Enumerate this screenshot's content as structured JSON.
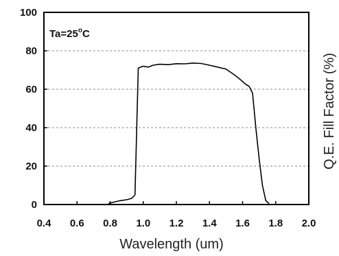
{
  "chart_data": {
    "type": "line",
    "title": "",
    "xlabel": "Wavelength (um)",
    "ylabel": "Q.E. Fill Factor (%)",
    "annotation": {
      "prefix": "Ta=25",
      "superscript": "o",
      "suffix": "C"
    },
    "xlim": [
      0.4,
      2.0
    ],
    "ylim": [
      0,
      100
    ],
    "x_ticks": [
      "0.4",
      "0.6",
      "0.8",
      "1.0",
      "1.2",
      "1.4",
      "1.6",
      "1.8",
      "2.0"
    ],
    "y_ticks": [
      "0",
      "20",
      "40",
      "60",
      "80",
      "100"
    ],
    "grid": "horizontal dashed",
    "series": [
      {
        "x": [
          0.79,
          0.82,
          0.86,
          0.9,
          0.93,
          0.95,
          0.96,
          0.97,
          1.0,
          1.03,
          1.06,
          1.1,
          1.15,
          1.2,
          1.25,
          1.3,
          1.35,
          1.4,
          1.45,
          1.5,
          1.55,
          1.58,
          1.6,
          1.62,
          1.64,
          1.66,
          1.68,
          1.7,
          1.72,
          1.74,
          1.76
        ],
        "y": [
          0.5,
          1.2,
          2.0,
          2.5,
          3.2,
          5.0,
          38.0,
          71.0,
          72.0,
          71.5,
          72.5,
          73.0,
          72.8,
          73.3,
          73.2,
          73.6,
          73.4,
          72.5,
          71.5,
          70.5,
          67.5,
          65.5,
          64.0,
          62.5,
          61.5,
          58.0,
          40.0,
          24.0,
          10.0,
          2.0,
          0.5
        ],
        "color": "#000000"
      }
    ]
  }
}
